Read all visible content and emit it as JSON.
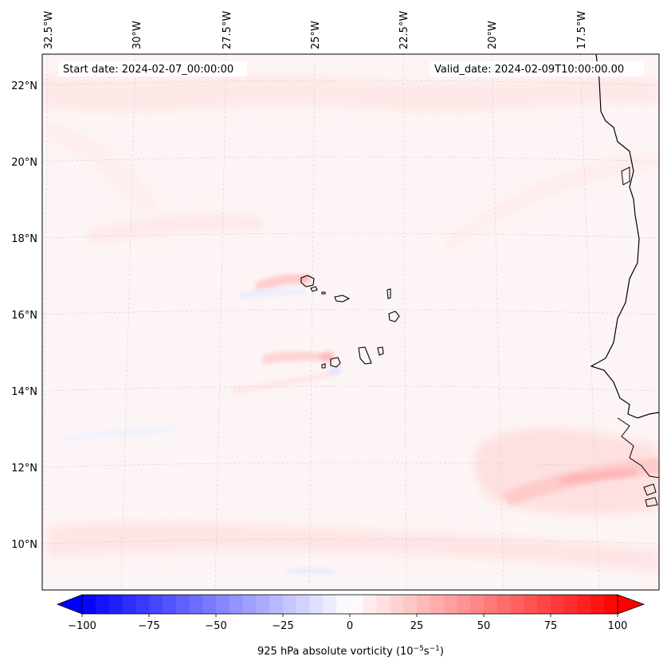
{
  "map": {
    "start_label": "Start date: 2024-02-07_00:00:00",
    "valid_label": "Valid_date: 2024-02-09T10:00:00.00",
    "lon_ticks": [
      "32.5°W",
      "30°W",
      "27.5°W",
      "25°W",
      "22.5°W",
      "20°W",
      "17.5°W"
    ],
    "lat_ticks": [
      "22°N",
      "20°N",
      "18°N",
      "16°N",
      "14°N",
      "12°N",
      "10°N"
    ],
    "variable": "925 hPa absolute vorticity",
    "colorbar_label_main": "925 hPa absolute vorticity (10",
    "colorbar_label_exp1": "−5",
    "colorbar_label_mid": "s",
    "colorbar_label_exp2": "−1",
    "colorbar_label_end": ")",
    "colorbar_min": -100,
    "colorbar_max": 100,
    "colorbar_ticks": [
      "−100",
      "−75",
      "−50",
      "−25",
      "0",
      "25",
      "50",
      "75",
      "100"
    ],
    "colors": {
      "negative": "#0000ff",
      "neutral": "#ffffff",
      "positive": "#ff0000",
      "coast": "#000000",
      "grid": "#cccccc"
    }
  }
}
